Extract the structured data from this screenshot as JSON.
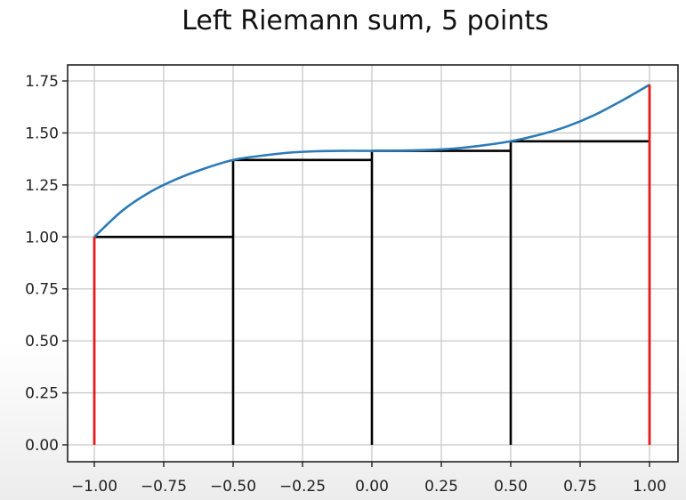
{
  "chart_data": {
    "type": "line",
    "title": "Left Riemann sum, 5 points",
    "xlabel": "",
    "ylabel": "",
    "xlim": [
      -1.0,
      1.0
    ],
    "ylim": [
      0.0,
      1.75
    ],
    "grid": true,
    "x_ticks": [
      "−1.00",
      "−0.75",
      "−0.50",
      "−0.25",
      "0.00",
      "0.25",
      "0.50",
      "0.75",
      "1.00"
    ],
    "y_ticks": [
      "0.00",
      "0.25",
      "0.50",
      "0.75",
      "1.00",
      "1.25",
      "1.50",
      "1.75"
    ],
    "curve": {
      "color": "#2c7bb6",
      "x": [
        -1.0,
        -0.9,
        -0.8,
        -0.7,
        -0.6,
        -0.5,
        -0.4,
        -0.3,
        -0.2,
        -0.1,
        0.0,
        0.1,
        0.2,
        0.3,
        0.4,
        0.5,
        0.6,
        0.7,
        0.8,
        0.9,
        1.0
      ],
      "y": [
        1.0,
        1.125,
        1.215,
        1.28,
        1.33,
        1.37,
        1.39,
        1.405,
        1.412,
        1.414,
        1.414,
        1.415,
        1.418,
        1.425,
        1.44,
        1.46,
        1.49,
        1.53,
        1.585,
        1.655,
        1.732
      ]
    },
    "riemann_points": {
      "x": [
        -1.0,
        -0.5,
        0.0,
        0.5,
        1.0
      ],
      "y": [
        1.0,
        1.37,
        1.414,
        1.46,
        1.732
      ]
    },
    "rectangle_color": "#000000",
    "endpoint_color": "#e41a1c"
  }
}
